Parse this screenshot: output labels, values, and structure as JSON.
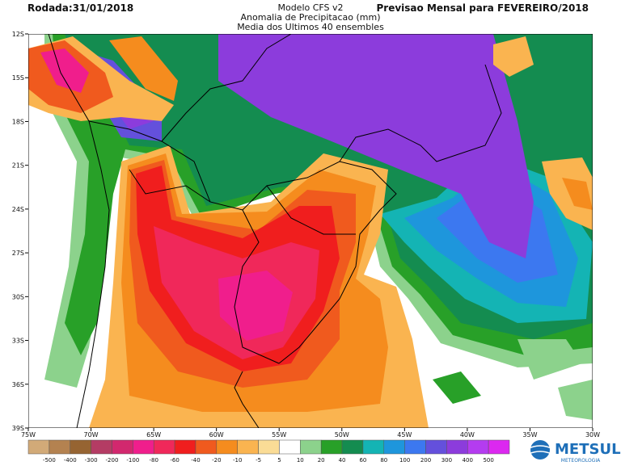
{
  "header": {
    "run": "Rodada:31/01/2018",
    "title": [
      "Modelo CFS v2",
      "Anomalia de Precipitacao (mm)",
      "Media dos Ultimos 40 ensembles"
    ],
    "forecast": "Previsao Mensal para FEVEREIRO/2018"
  },
  "map": {
    "lat_labels": [
      "12S",
      "15S",
      "18S",
      "21S",
      "24S",
      "27S",
      "30S",
      "33S",
      "36S",
      "39S"
    ],
    "lon_labels": [
      "75W",
      "70W",
      "65W",
      "60W",
      "55W",
      "50W",
      "45W",
      "40W",
      "35W",
      "30W"
    ]
  },
  "legend": {
    "labels": [
      -500,
      -400,
      -300,
      -200,
      -100,
      -80,
      -60,
      -40,
      -20,
      -10,
      -5,
      5,
      10,
      20,
      40,
      60,
      80,
      100,
      200,
      300,
      400,
      500
    ],
    "colors": [
      "#d2aa78",
      "#b48250",
      "#966432",
      "#b43c64",
      "#d2286e",
      "#f01e8c",
      "#f0285a",
      "#f01e1e",
      "#f05a1e",
      "#f58c1e",
      "#fab450",
      "#fadc96",
      "#ffffff",
      "#8cd28c",
      "#28a028",
      "#148c50",
      "#14b4b4",
      "#1e96dc",
      "#3c78f0",
      "#6450dc",
      "#8c3cdc",
      "#b43cf0",
      "#dc28f0"
    ]
  },
  "logo": {
    "name": "METSUL",
    "subtitle": "METEOROLOGIA"
  }
}
